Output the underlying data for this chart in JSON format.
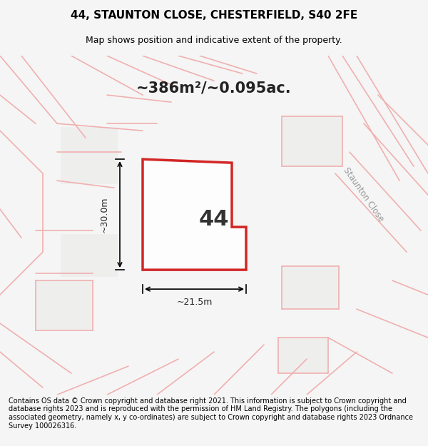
{
  "title": "44, STAUNTON CLOSE, CHESTERFIELD, S40 2FE",
  "subtitle": "Map shows position and indicative extent of the property.",
  "footer": "Contains OS data © Crown copyright and database right 2021. This information is subject to Crown copyright and database rights 2023 and is reproduced with the permission of HM Land Registry. The polygons (including the associated geometry, namely x, y co-ordinates) are subject to Crown copyright and database rights 2023 Ordnance Survey 100026316.",
  "area_label": "~386m²/~0.095ac.",
  "plot_number": "44",
  "dim_width": "~21.5m",
  "dim_height": "~30.0m",
  "bg_color": "#f0f0f0",
  "map_bg": "#f5f5f5",
  "road_color": "#e8e8e8",
  "building_outline_color": "#f0b0b0",
  "plot_outline_color": "#cc0000",
  "plot_fill_color": "#ffffff",
  "plot_fill_alpha": 0.85,
  "title_fontsize": 11,
  "subtitle_fontsize": 9,
  "footer_fontsize": 7,
  "area_fontsize": 15,
  "number_fontsize": 22
}
